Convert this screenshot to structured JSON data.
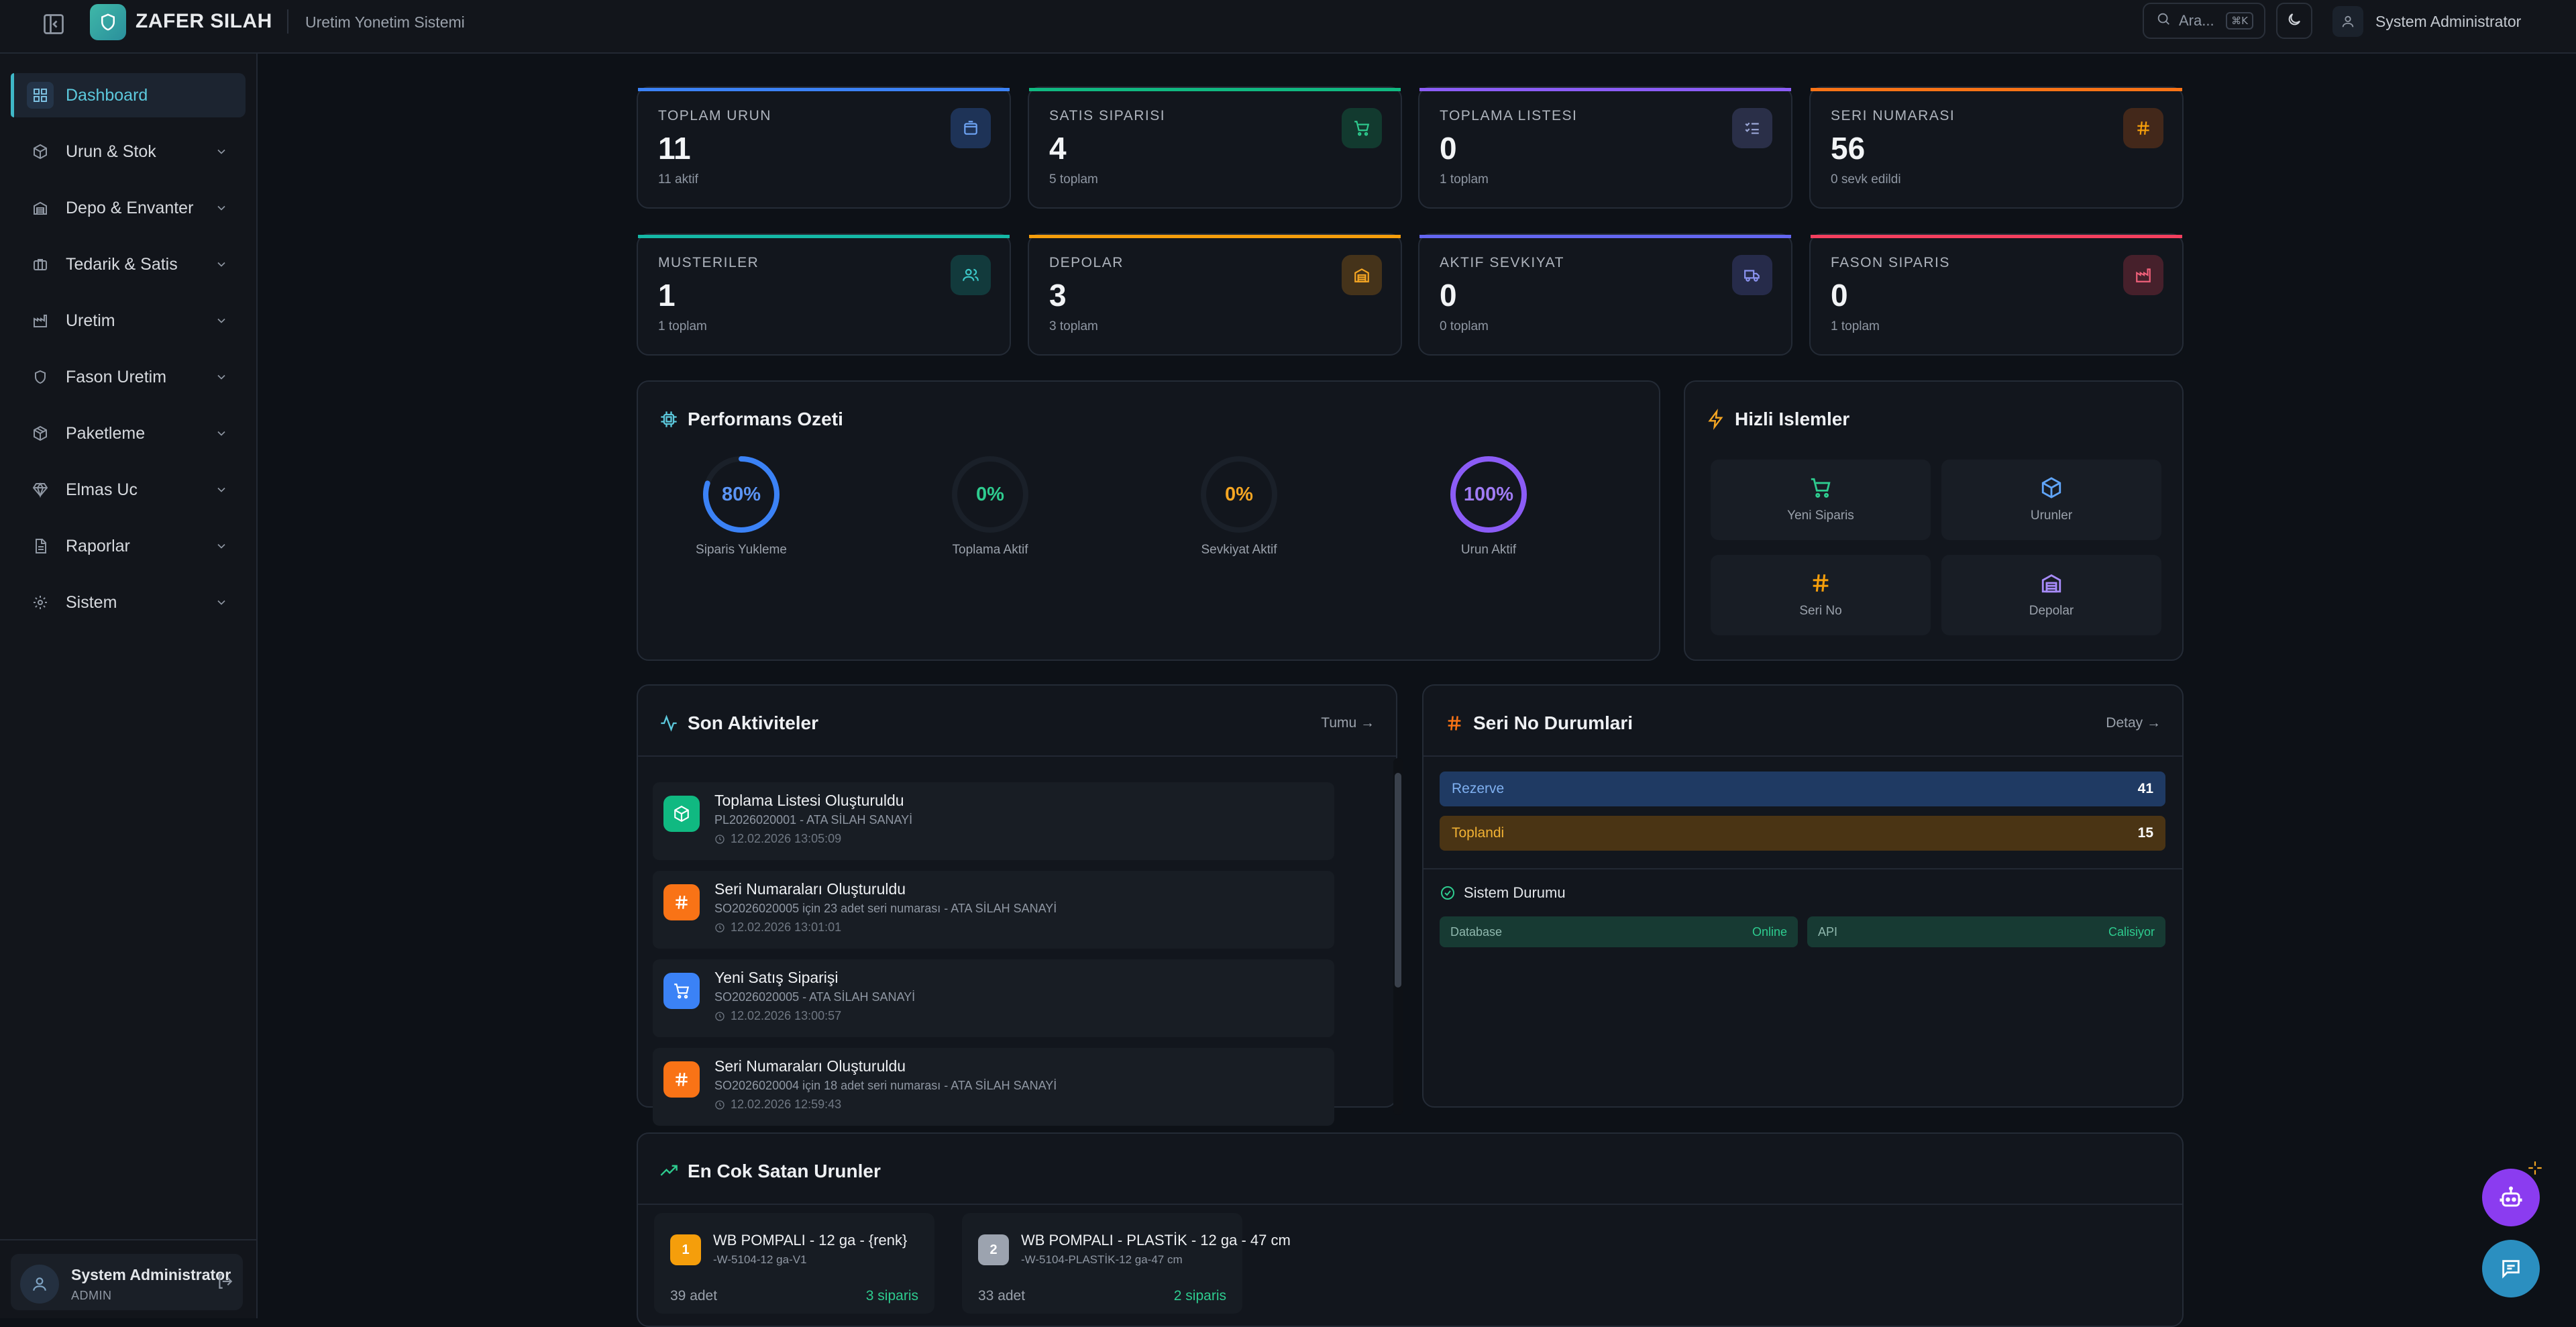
{
  "header": {
    "brand": "ZAFER SILAH",
    "subtitle": "Uretim Yonetim Sistemi",
    "search_placeholder": "Ara...",
    "search_shortcut": "⌘K",
    "user_name": "System Administrator"
  },
  "sidebar": {
    "items": [
      {
        "label": "Dashboard",
        "icon": "dashboard-icon"
      },
      {
        "label": "Urun & Stok",
        "icon": "box-icon"
      },
      {
        "label": "Depo & Envanter",
        "icon": "warehouse-icon"
      },
      {
        "label": "Tedarik & Satis",
        "icon": "briefcase-icon"
      },
      {
        "label": "Uretim",
        "icon": "factory-icon"
      },
      {
        "label": "Fason Uretim",
        "icon": "shield-icon"
      },
      {
        "label": "Paketleme",
        "icon": "package-icon"
      },
      {
        "label": "Elmas Uc",
        "icon": "gem-icon"
      },
      {
        "label": "Raporlar",
        "icon": "report-icon"
      },
      {
        "label": "Sistem",
        "icon": "gear-icon"
      }
    ],
    "footer": {
      "name": "System Administrator",
      "role": "ADMIN"
    }
  },
  "stats": [
    {
      "label": "TOPLAM URUN",
      "value": "11",
      "sub": "11 aktif",
      "color": "#3b82f6"
    },
    {
      "label": "SATIS SIPARISI",
      "value": "4",
      "sub": "5 toplam",
      "color": "#10b981"
    },
    {
      "label": "TOPLAMA LISTESI",
      "value": "0",
      "sub": "1 toplam",
      "color": "#8b5cf6"
    },
    {
      "label": "SERI NUMARASI",
      "value": "56",
      "sub": "0 sevk edildi",
      "color": "#f97316"
    },
    {
      "label": "MUSTERILER",
      "value": "1",
      "sub": "1 toplam",
      "color": "#14b8a6"
    },
    {
      "label": "DEPOLAR",
      "value": "3",
      "sub": "3 toplam",
      "color": "#f59e0b"
    },
    {
      "label": "AKTIF SEVKIYAT",
      "value": "0",
      "sub": "0 toplam",
      "color": "#6366f1"
    },
    {
      "label": "FASON SIPARIS",
      "value": "0",
      "sub": "1 toplam",
      "color": "#f43f5e"
    }
  ],
  "performance": {
    "title": "Performans Ozeti",
    "gauges": [
      {
        "label": "Siparis Yukleme",
        "value": "80%",
        "fraction": 0.8,
        "color": "#3b82f6"
      },
      {
        "label": "Toplama Aktif",
        "value": "0%",
        "fraction": 0,
        "color": "#10b981"
      },
      {
        "label": "Sevkiyat Aktif",
        "value": "0%",
        "fraction": 0,
        "color": "#f59e0b"
      },
      {
        "label": "Urun Aktif",
        "value": "100%",
        "fraction": 1,
        "color": "#8b5cf6"
      }
    ]
  },
  "quick_actions": {
    "title": "Hizli Islemler",
    "items": [
      {
        "label": "Yeni Siparis",
        "icon": "cart-icon",
        "color": "#10b981"
      },
      {
        "label": "Urunler",
        "icon": "cube-icon",
        "color": "#60a5fa"
      },
      {
        "label": "Seri No",
        "icon": "hash-icon",
        "color": "#f59e0b"
      },
      {
        "label": "Depolar",
        "icon": "warehouse-icon",
        "color": "#a78bfa"
      }
    ]
  },
  "activities": {
    "title": "Son Aktiviteler",
    "link": "Tumu →",
    "items": [
      {
        "title": "Toplama Listesi Oluşturuldu",
        "desc": "PL2026020001 - ATA SİLAH SANAYİ",
        "time": "12.02.2026 13:05:09",
        "icon": "package-icon",
        "color": "#10b981"
      },
      {
        "title": "Seri Numaraları Oluşturuldu",
        "desc": "SO2026020005 için 23 adet seri numarası - ATA SİLAH SANAYİ",
        "time": "12.02.2026 13:01:01",
        "icon": "hash-icon",
        "color": "#f97316"
      },
      {
        "title": "Yeni Satış Siparişi",
        "desc": "SO2026020005 - ATA SİLAH SANAYİ",
        "time": "12.02.2026 13:00:57",
        "icon": "cart-icon",
        "color": "#3b82f6"
      },
      {
        "title": "Seri Numaraları Oluşturuldu",
        "desc": "SO2026020004 için 18 adet seri numarası - ATA SİLAH SANAYİ",
        "time": "12.02.2026 12:59:43",
        "icon": "hash-icon",
        "color": "#f97316"
      }
    ]
  },
  "serial_status": {
    "title": "Seri No Durumlari",
    "link": "Detay →",
    "rows": [
      {
        "label": "Rezerve",
        "count": "41",
        "bg": "#1f3a63",
        "fg": "#7fb0f0"
      },
      {
        "label": "Toplandi",
        "count": "15",
        "bg": "#4a3414",
        "fg": "#f2b233"
      }
    ],
    "system_title": "Sistem Durumu",
    "system": [
      {
        "name": "Database",
        "status": "Online"
      },
      {
        "name": "API",
        "status": "Calisiyor"
      }
    ]
  },
  "top_products": {
    "title": "En Cok Satan Urunler",
    "items": [
      {
        "rank": "1",
        "name": "WB POMPALI - 12 ga - {renk}",
        "code": "-W-5104-12 ga-V1",
        "qty": "39 adet",
        "orders": "3 siparis",
        "color": "#f59e0b"
      },
      {
        "rank": "2",
        "name": "WB POMPALI - PLASTİK - 12 ga - 47 cm",
        "code": "-W-5104-PLASTİK-12 ga-47 cm",
        "qty": "33 adet",
        "orders": "2 siparis",
        "color": "#9ca3af"
      }
    ]
  }
}
